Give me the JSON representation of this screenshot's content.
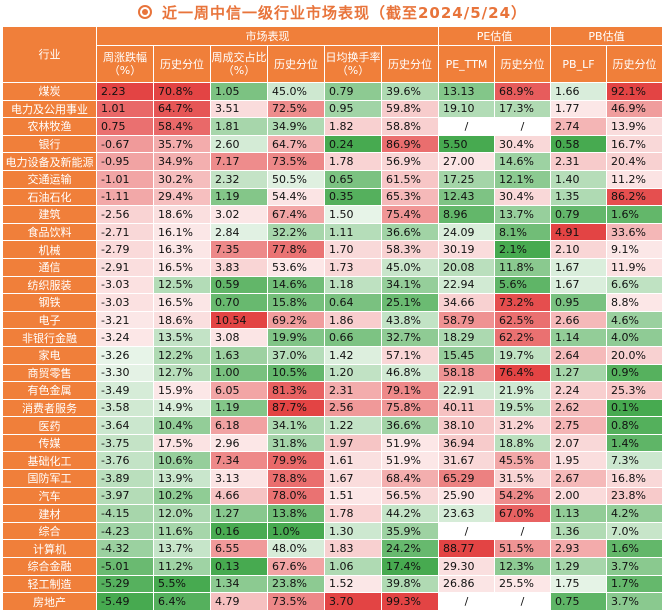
{
  "title": "近一周中信一级行业市场表现（截至2024/5/24）",
  "colors": {
    "header": "#f07f3a",
    "title": "#e8743b",
    "high": "#e23b3b",
    "low": "#3fa648"
  },
  "headers": {
    "industry": "行业",
    "market": "市场表现",
    "pe": "PE估值",
    "pb": "PB估值",
    "weekly_change": "周涨跌幅（%）",
    "turnover_ratio": "周成交占比（%）",
    "daily_turnover": "日均换手率（%）",
    "pe_ttm": "PE_TTM",
    "pb_lf": "PB_LF",
    "percentile": "历史分位"
  },
  "chart_data": {
    "type": "table",
    "columns": [
      "行业",
      "周涨跌幅（%）",
      "历史分位",
      "周成交占比（%）",
      "历史分位",
      "日均换手率（%）",
      "历史分位",
      "PE_TTM",
      "历史分位",
      "PB_LF",
      "历史分位"
    ],
    "rows": [
      [
        "煤炭",
        "2.23",
        "70.8%",
        "1.05",
        "45.0%",
        "0.79",
        "39.6%",
        "13.13",
        "68.9%",
        "1.66",
        "92.1%"
      ],
      [
        "电力及公用事业",
        "1.01",
        "64.7%",
        "3.51",
        "72.5%",
        "0.95",
        "59.8%",
        "19.10",
        "17.3%",
        "1.77",
        "46.9%"
      ],
      [
        "农林牧渔",
        "0.75",
        "58.4%",
        "1.81",
        "34.9%",
        "1.82",
        "58.8%",
        "/",
        "/",
        "2.74",
        "13.9%"
      ],
      [
        "银行",
        "-0.67",
        "35.7%",
        "2.60",
        "64.7%",
        "0.24",
        "86.9%",
        "5.50",
        "30.4%",
        "0.58",
        "16.7%"
      ],
      [
        "电力设备及新能源",
        "-0.95",
        "34.9%",
        "7.17",
        "73.5%",
        "1.78",
        "56.9%",
        "27.00",
        "14.6%",
        "2.31",
        "20.4%"
      ],
      [
        "交通运输",
        "-1.01",
        "30.2%",
        "2.32",
        "50.5%",
        "0.65",
        "61.5%",
        "17.25",
        "12.1%",
        "1.40",
        "11.2%"
      ],
      [
        "石油石化",
        "-1.11",
        "29.4%",
        "1.19",
        "54.4%",
        "0.35",
        "65.3%",
        "12.43",
        "30.4%",
        "1.35",
        "86.2%"
      ],
      [
        "建筑",
        "-2.56",
        "18.6%",
        "3.02",
        "67.4%",
        "1.50",
        "75.4%",
        "8.96",
        "13.7%",
        "0.79",
        "1.6%"
      ],
      [
        "食品饮料",
        "-2.71",
        "16.1%",
        "2.84",
        "32.2%",
        "1.11",
        "36.6%",
        "24.09",
        "8.1%",
        "4.91",
        "33.6%"
      ],
      [
        "机械",
        "-2.79",
        "16.3%",
        "7.35",
        "77.8%",
        "1.70",
        "58.3%",
        "30.19",
        "2.1%",
        "2.10",
        "9.1%"
      ],
      [
        "通信",
        "-2.91",
        "16.5%",
        "3.83",
        "53.6%",
        "1.73",
        "45.0%",
        "20.08",
        "11.8%",
        "1.67",
        "11.9%"
      ],
      [
        "纺织服装",
        "-3.03",
        "12.5%",
        "0.59",
        "14.6%",
        "1.18",
        "34.1%",
        "22.94",
        "5.6%",
        "1.67",
        "6.6%"
      ],
      [
        "钢铁",
        "-3.03",
        "16.5%",
        "0.70",
        "15.8%",
        "0.64",
        "25.1%",
        "34.66",
        "73.2%",
        "0.95",
        "8.8%"
      ],
      [
        "电子",
        "-3.21",
        "18.6%",
        "10.54",
        "69.2%",
        "1.86",
        "43.8%",
        "58.79",
        "62.5%",
        "2.66",
        "4.6%"
      ],
      [
        "非银行金融",
        "-3.24",
        "13.5%",
        "3.08",
        "19.9%",
        "0.66",
        "32.7%",
        "18.29",
        "62.2%",
        "1.14",
        "4.0%"
      ],
      [
        "家电",
        "-3.26",
        "12.2%",
        "1.63",
        "37.0%",
        "1.42",
        "57.1%",
        "15.45",
        "19.7%",
        "2.64",
        "20.0%"
      ],
      [
        "商贸零售",
        "-3.30",
        "12.7%",
        "1.00",
        "10.5%",
        "1.20",
        "46.8%",
        "58.18",
        "76.4%",
        "1.27",
        "0.9%"
      ],
      [
        "有色金属",
        "-3.49",
        "15.9%",
        "6.05",
        "81.3%",
        "2.31",
        "79.1%",
        "22.91",
        "21.9%",
        "2.24",
        "25.3%"
      ],
      [
        "消费者服务",
        "-3.58",
        "14.9%",
        "1.19",
        "87.7%",
        "2.56",
        "75.8%",
        "40.11",
        "19.5%",
        "2.62",
        "0.1%"
      ],
      [
        "医药",
        "-3.64",
        "10.4%",
        "6.18",
        "34.1%",
        "1.22",
        "36.6%",
        "38.10",
        "31.2%",
        "2.75",
        "0.8%"
      ],
      [
        "传媒",
        "-3.75",
        "17.5%",
        "2.96",
        "31.8%",
        "1.97",
        "51.9%",
        "36.94",
        "18.8%",
        "2.07",
        "1.4%"
      ],
      [
        "基础化工",
        "-3.76",
        "10.6%",
        "7.34",
        "79.9%",
        "1.61",
        "51.9%",
        "31.67",
        "45.5%",
        "1.95",
        "7.3%"
      ],
      [
        "国防军工",
        "-3.89",
        "13.9%",
        "3.13",
        "78.8%",
        "1.67",
        "68.4%",
        "65.29",
        "31.5%",
        "2.67",
        "16.8%"
      ],
      [
        "汽车",
        "-3.97",
        "10.2%",
        "4.66",
        "78.0%",
        "1.51",
        "56.5%",
        "25.90",
        "54.2%",
        "2.00",
        "23.8%"
      ],
      [
        "建材",
        "-4.15",
        "12.0%",
        "1.27",
        "13.8%",
        "1.78",
        "44.2%",
        "23.63",
        "67.0%",
        "1.13",
        "4.2%"
      ],
      [
        "综合",
        "-4.23",
        "11.6%",
        "0.16",
        "1.0%",
        "1.30",
        "35.9%",
        "/",
        "/",
        "1.36",
        "7.0%"
      ],
      [
        "计算机",
        "-4.32",
        "13.7%",
        "6.55",
        "48.0%",
        "1.83",
        "24.2%",
        "88.77",
        "51.5%",
        "2.93",
        "1.6%"
      ],
      [
        "综合金融",
        "-5.01",
        "11.2%",
        "0.13",
        "67.6%",
        "1.06",
        "17.4%",
        "29.30",
        "12.3%",
        "1.29",
        "3.7%"
      ],
      [
        "轻工制造",
        "-5.29",
        "5.5%",
        "1.34",
        "23.8%",
        "1.52",
        "39.8%",
        "26.86",
        "25.5%",
        "1.75",
        "1.7%"
      ],
      [
        "房地产",
        "-5.49",
        "6.4%",
        "4.79",
        "73.5%",
        "3.70",
        "99.3%",
        "/",
        "/",
        "0.75",
        "3.7%"
      ]
    ]
  }
}
